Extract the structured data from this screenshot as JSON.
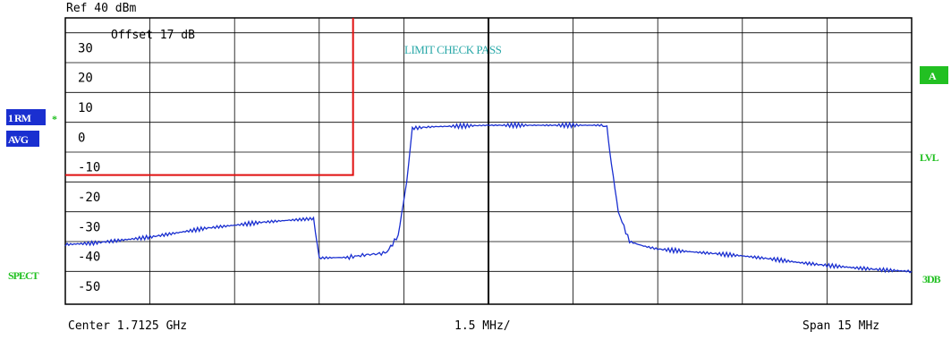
{
  "header": {
    "ref_level": "Ref   40 dBm",
    "offset": "Offset   17 dB",
    "limit_status": "LIMIT CHECK    PASS"
  },
  "left_labels": {
    "trace_mode": "1 RM",
    "trace_marker": "*",
    "detector": "AVG",
    "measurement": "SPECT"
  },
  "right_labels": {
    "trace_a": "A",
    "level": "LVL",
    "bandwidth": "3DB"
  },
  "footer": {
    "center": "Center  1.7125 GHz",
    "per_div": "1.5 MHz/",
    "span": "Span  15 MHz"
  },
  "colors": {
    "trace": "#1a2fd0",
    "limit_line": "#e01010",
    "label_green": "#22c022",
    "label_blue_bg": "#1a2fd0",
    "limit_text": "#2aa8a8",
    "grid": "#000000"
  },
  "chart_data": {
    "type": "line",
    "x_unit": "MHz offset from center",
    "xlim": [
      -7.5,
      7.5
    ],
    "ylim": [
      -56,
      40
    ],
    "y_unit": "dBm",
    "ytick_values": [
      30,
      20,
      10,
      0,
      -10,
      -20,
      -30,
      -40,
      -50
    ],
    "ytick_labels": [
      "30",
      "20",
      "10",
      "0",
      "-10",
      "-20",
      "-30",
      "-40",
      "-50"
    ],
    "grid": true,
    "series": [
      {
        "role": "trace",
        "x": [
          -7.5,
          -7.0,
          -6.5,
          -6.0,
          -5.5,
          -5.0,
          -4.5,
          -4.0,
          -3.5,
          -3.1,
          -3.0,
          -2.5,
          -2.2,
          -1.9,
          -1.8,
          -1.6,
          -1.45,
          -1.35,
          -1.0,
          0.0,
          1.0,
          2.0,
          2.1,
          2.15,
          2.3,
          2.5,
          2.75,
          3.0,
          3.5,
          4.0,
          4.5,
          5.0,
          5.5,
          6.0,
          6.5,
          7.0,
          7.5
        ],
        "y": [
          -36,
          -35.5,
          -34.5,
          -33.5,
          -32,
          -30.5,
          -29.5,
          -28.5,
          -27.8,
          -27.3,
          -40.5,
          -40.3,
          -39.5,
          -39.0,
          -38.5,
          -33,
          -15,
          3,
          3.5,
          4,
          4,
          4,
          3.5,
          -5,
          -25,
          -35,
          -36.5,
          -37.5,
          -38.3,
          -39,
          -39.8,
          -40.8,
          -42,
          -43,
          -43.8,
          -44.5,
          -45
        ]
      }
    ],
    "limit_line": {
      "x": [
        -7.5,
        -2.4,
        -2.4
      ],
      "y": [
        -12.7,
        -12.7,
        40
      ]
    }
  }
}
